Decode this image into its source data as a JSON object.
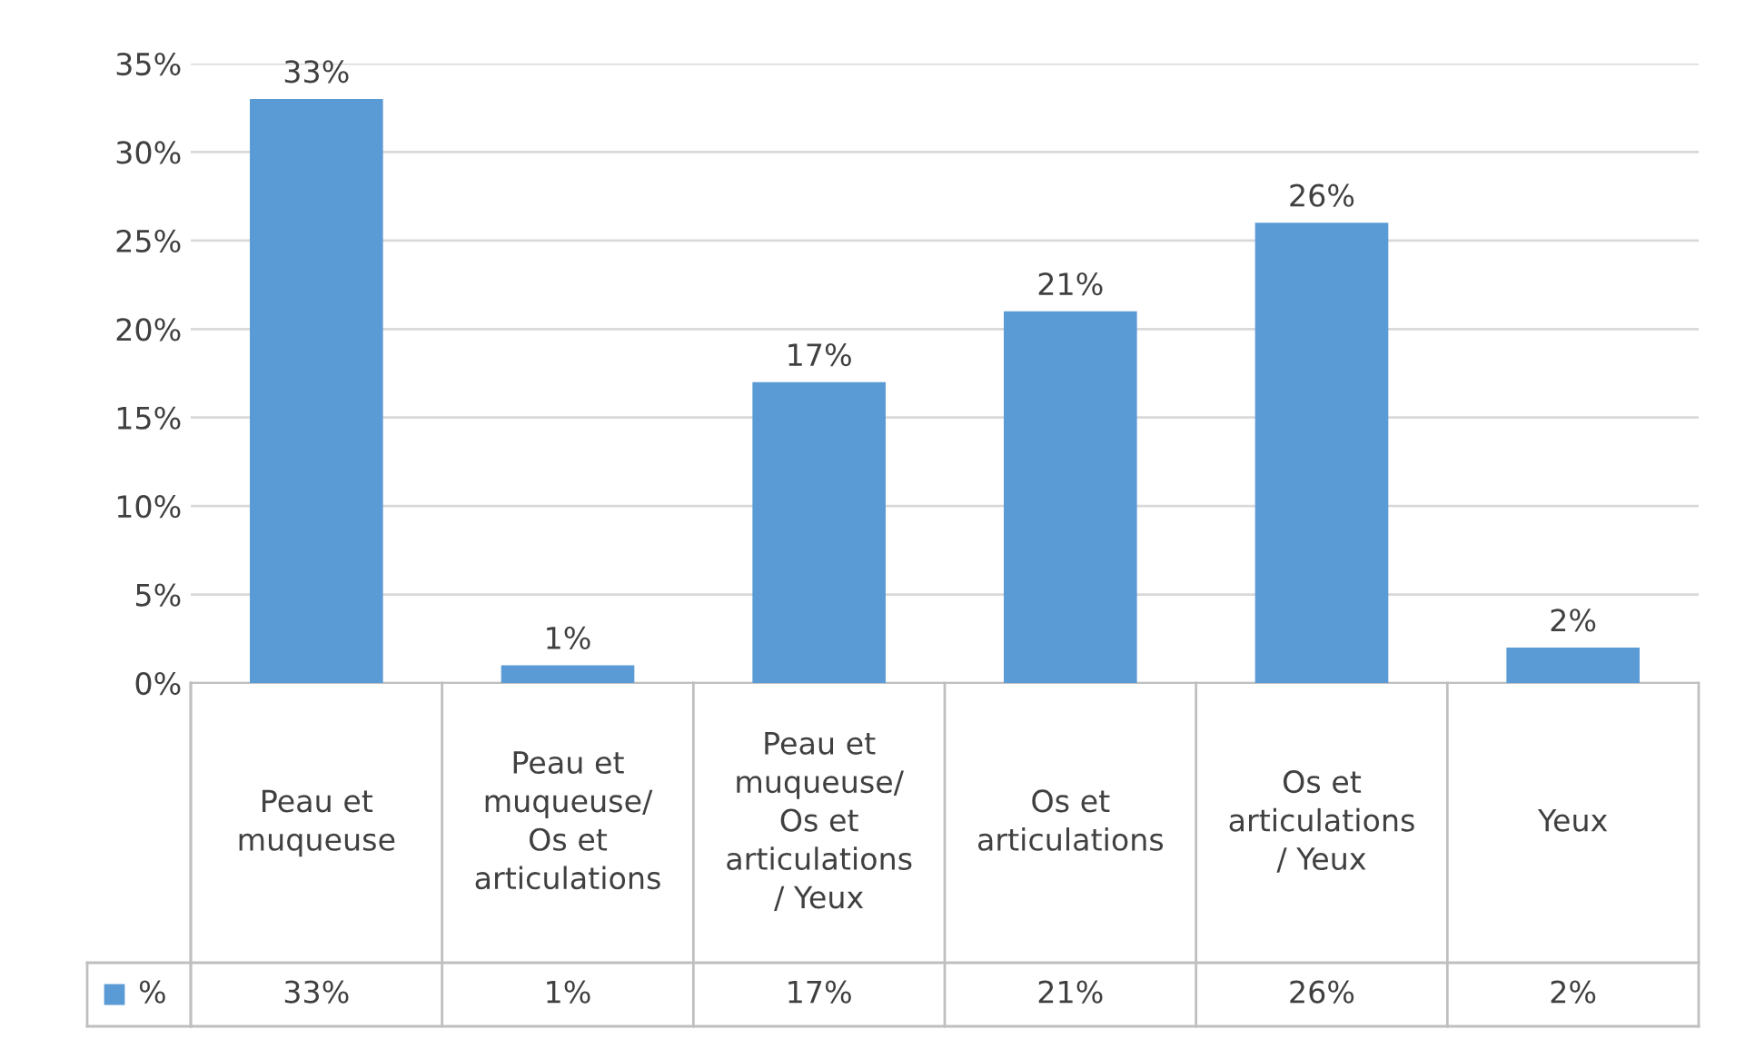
{
  "chart_data": {
    "type": "bar",
    "categories": [
      "Peau et\nmuqueuse",
      "Peau et\nmuqueuse/\nOs et\narticulations",
      "Peau et\nmuqueuse/\nOs et\narticulations\n/ Yeux",
      "Os et\narticulations",
      "Os et\narticulations\n/ Yeux",
      "Yeux"
    ],
    "series": [
      {
        "name": "%",
        "color": "#5b9bd5",
        "values": [
          33,
          1,
          17,
          21,
          26,
          2
        ],
        "value_labels": [
          "33%",
          "1%",
          "17%",
          "21%",
          "26%",
          "2%"
        ]
      }
    ],
    "ylim": [
      0,
      35
    ],
    "yticks": [
      {
        "value": 0,
        "label": "0%"
      },
      {
        "value": 5,
        "label": "5%"
      },
      {
        "value": 10,
        "label": "10%"
      },
      {
        "value": 15,
        "label": "15%"
      },
      {
        "value": 20,
        "label": "20%"
      },
      {
        "value": 25,
        "label": "25%"
      },
      {
        "value": 30,
        "label": "30%"
      },
      {
        "value": 35,
        "label": "35%"
      }
    ],
    "grid": "y"
  }
}
